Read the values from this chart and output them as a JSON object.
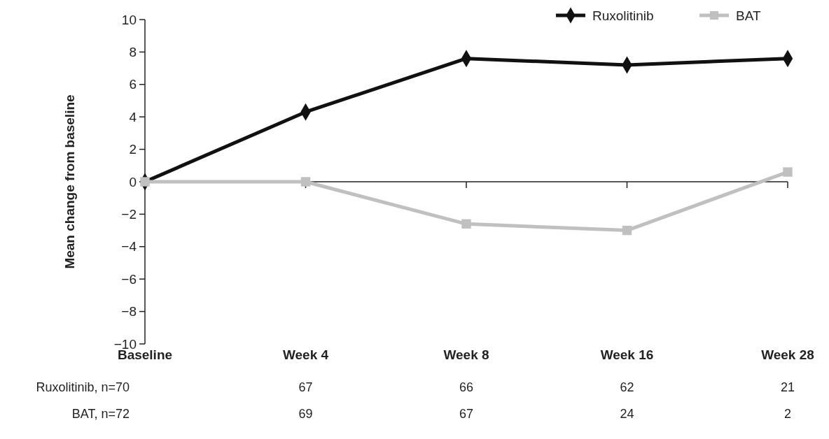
{
  "chart_data": {
    "type": "line",
    "ylabel": "Mean change from baseline",
    "categories": [
      "Baseline",
      "Week 4",
      "Week 8",
      "Week 16",
      "Week 28"
    ],
    "series": [
      {
        "name": "Ruxolitinib",
        "color": "#111111",
        "marker": "diamond",
        "values": [
          0,
          4.3,
          7.6,
          7.2,
          7.6
        ]
      },
      {
        "name": "BAT",
        "color": "#c0c0c0",
        "marker": "square",
        "values": [
          0,
          0,
          -2.6,
          -3.0,
          0.6
        ]
      }
    ],
    "ylim": [
      -10,
      10
    ],
    "yticks": [
      {
        "value": -10,
        "label": "−10"
      },
      {
        "value": -8,
        "label": "−8"
      },
      {
        "value": -6,
        "label": "−6"
      },
      {
        "value": -4,
        "label": "−4"
      },
      {
        "value": -2,
        "label": "−2"
      },
      0,
      2,
      4,
      6,
      8,
      10
    ],
    "legend": "top right",
    "line_style": "solid",
    "annotations": [
      "Ruxolitinib, n=70",
      "67",
      "66",
      "62",
      "21",
      "BAT, n=72",
      "69",
      "67",
      "24",
      "2"
    ]
  }
}
